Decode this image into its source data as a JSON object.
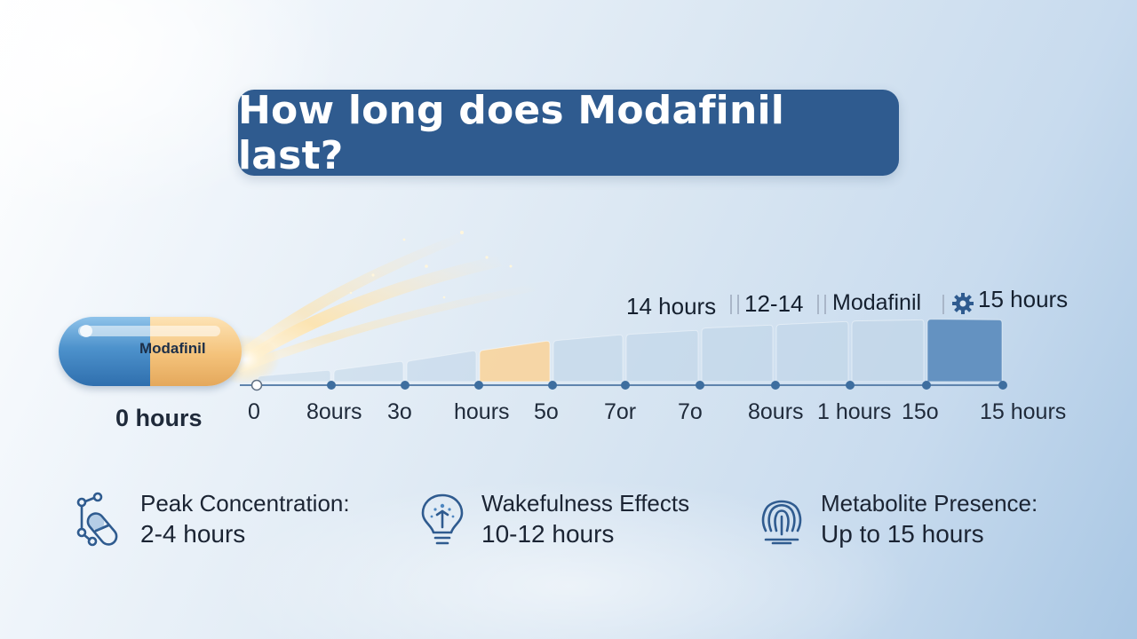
{
  "title": "How long does Modafinil last?",
  "pill_label": "Modafinil",
  "start_label": "0 hours",
  "tick_labels": [
    "0",
    "8ours",
    "3o",
    "hours",
    "5o",
    "7or",
    "7o",
    "8ours",
    "1 hours",
    "15o",
    "15 hours"
  ],
  "top_labels": [
    "14 hours",
    "12-14",
    "Modafinil",
    "15 hours"
  ],
  "features": [
    {
      "icon": "molecule-pill-icon",
      "title": "Peak Concentration:",
      "value": "2-4 hours"
    },
    {
      "icon": "lightbulb-icon",
      "title": "Wakefulness Effects",
      "value": "10-12 hours"
    },
    {
      "icon": "fingerprint-icon",
      "title": "Metabolite Presence:",
      "value": "Up to 15 hours"
    }
  ],
  "colors": {
    "title_bg": "#2f5b8f",
    "pill_blue": "#3f82c2",
    "pill_orange": "#f4c27a",
    "bar_light": "#c4d8ea",
    "bar_highlight": "#f8d6a2",
    "bar_dark": "#5f8fbf",
    "axis": "#5f84ad"
  }
}
